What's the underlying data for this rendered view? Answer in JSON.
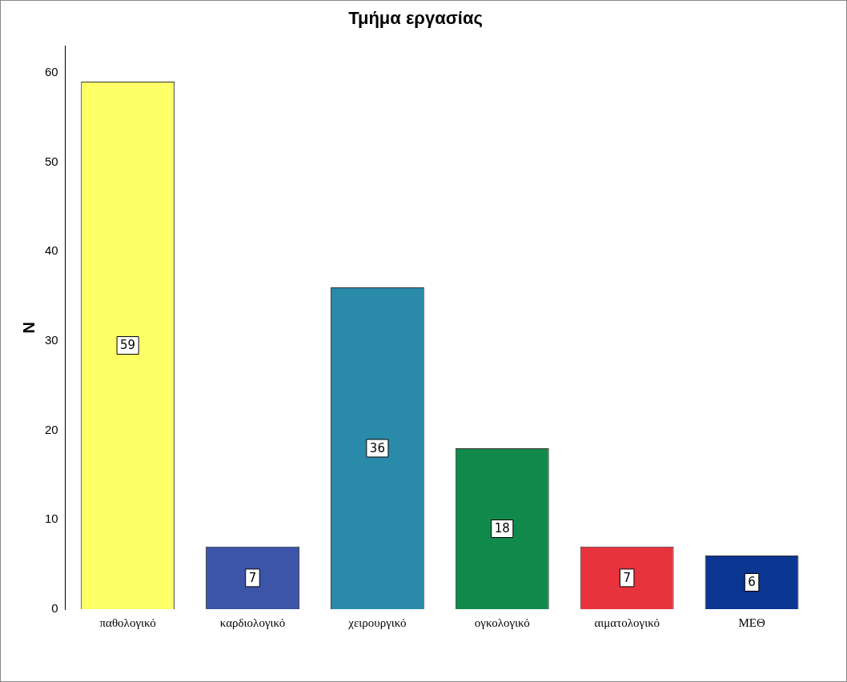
{
  "chart_data": {
    "type": "bar",
    "title": "Τμήμα εργασίας",
    "ylabel": "N",
    "categories": [
      "παθολογικό",
      "καρδιολογικό",
      "χειρουργικό",
      "ογκολογικό",
      "αιματολογικό",
      "ΜΕΘ"
    ],
    "values": [
      59,
      7,
      36,
      18,
      7,
      6
    ],
    "colors": [
      "#ffff66",
      "#3d55a8",
      "#2a8aaa",
      "#11894a",
      "#e8323c",
      "#0a3590"
    ],
    "ylim": [
      0,
      63
    ],
    "yticks": [
      0,
      10,
      20,
      30,
      40,
      50,
      60
    ],
    "grid": false,
    "legend": false,
    "data_labels": true
  }
}
